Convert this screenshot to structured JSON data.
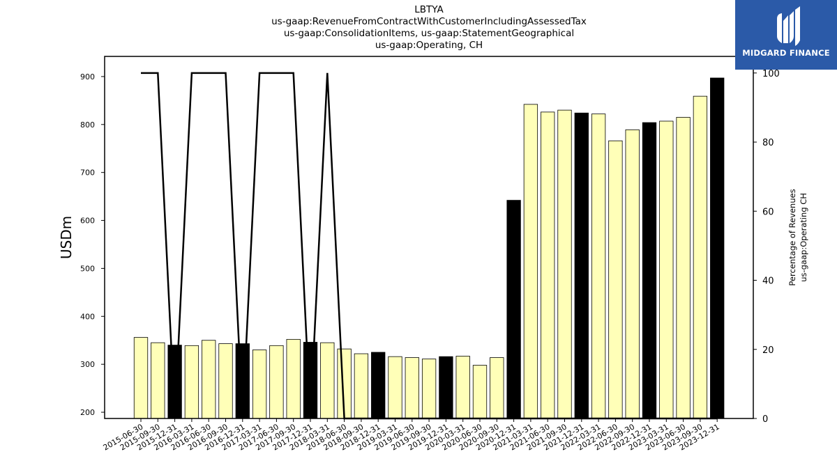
{
  "title_lines": [
    "LBTYA",
    "us-gaap:RevenueFromContractWithCustomerIncludingAssessedTax",
    "us-gaap:ConsolidationItems, us-gaap:StatementGeographical",
    "us-gaap:Operating, CH"
  ],
  "logo": {
    "text": "MIDGARD FINANCE",
    "background": "#2b5aa8"
  },
  "chart_data": {
    "type": "bar",
    "categories": [
      "2015-06-30",
      "2015-09-30",
      "2015-12-31",
      "2016-03-31",
      "2016-06-30",
      "2016-09-30",
      "2016-12-31",
      "2017-03-31",
      "2017-06-30",
      "2017-09-30",
      "2017-12-31",
      "2018-03-31",
      "2018-06-30",
      "2018-09-30",
      "2018-12-31",
      "2019-03-31",
      "2019-06-30",
      "2019-09-30",
      "2019-12-31",
      "2020-03-31",
      "2020-06-30",
      "2020-09-30",
      "2020-12-31",
      "2021-03-31",
      "2021-06-30",
      "2021-09-30",
      "2021-12-31",
      "2022-03-31",
      "2022-06-30",
      "2022-09-30",
      "2022-12-31",
      "2023-03-31",
      "2023-06-30",
      "2023-09-30",
      "2023-12-31"
    ],
    "series": [
      {
        "type": "bar",
        "axis": "left",
        "values": [
          356,
          345,
          340,
          339,
          350,
          343,
          343,
          330,
          339,
          352,
          346,
          345,
          332,
          322,
          325,
          316,
          314,
          311,
          316,
          317,
          298,
          314,
          642,
          842,
          826,
          830,
          824,
          822,
          766,
          789,
          804,
          807,
          815,
          859,
          897
        ],
        "colors": [
          "#ffffb8",
          "#ffffb8",
          "#000000",
          "#ffffb8",
          "#ffffb8",
          "#ffffb8",
          "#000000",
          "#ffffb8",
          "#ffffb8",
          "#ffffb8",
          "#000000",
          "#ffffb8",
          "#ffffb8",
          "#ffffb8",
          "#000000",
          "#ffffb8",
          "#ffffb8",
          "#ffffb8",
          "#000000",
          "#ffffb8",
          "#ffffb8",
          "#ffffb8",
          "#000000",
          "#ffffb8",
          "#ffffb8",
          "#ffffb8",
          "#000000",
          "#ffffb8",
          "#ffffb8",
          "#ffffb8",
          "#000000",
          "#ffffb8",
          "#ffffb8",
          "#ffffb8",
          "#000000"
        ]
      },
      {
        "type": "line",
        "axis": "right",
        "color": "#000000",
        "values": [
          100,
          100,
          0,
          100,
          100,
          100,
          0,
          100,
          100,
          100,
          0,
          100,
          0,
          0,
          0,
          0,
          0,
          0,
          0,
          0,
          0,
          0,
          0,
          0,
          0,
          0,
          0,
          0,
          0,
          0,
          0,
          0,
          0,
          0,
          0
        ]
      }
    ],
    "ylabel": "USDm",
    "y2label": [
      "Percentage of Revenues",
      "us-gaap:Operating CH"
    ],
    "ylim": [
      187,
      942
    ],
    "y2lim": [
      0,
      104.8
    ],
    "yticks": [
      200,
      300,
      400,
      500,
      600,
      700,
      800,
      900
    ],
    "y2ticks": [
      0,
      20,
      40,
      60,
      80,
      100
    ],
    "grid": false
  }
}
